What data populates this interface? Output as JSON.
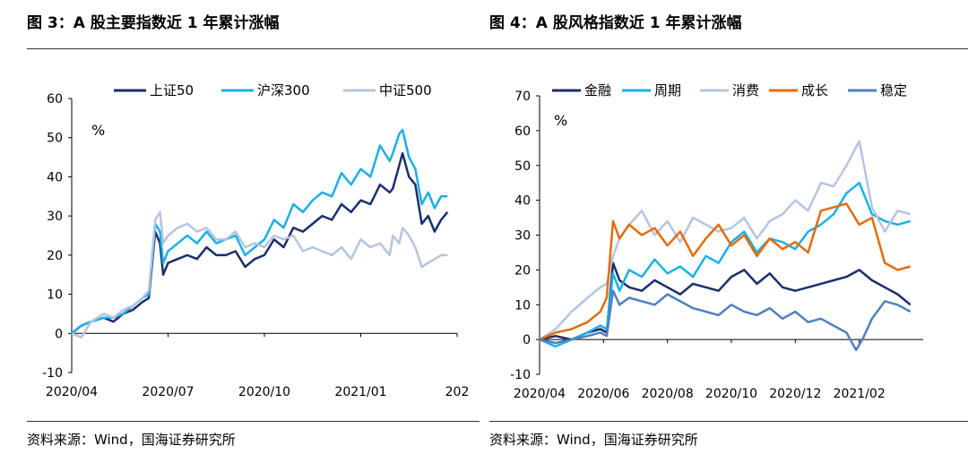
{
  "figure3": {
    "title": "图 3：A 股主要指数近 1 年累计涨幅",
    "source": "资料来源：Wind，国海证券研究所",
    "chart_data": {
      "type": "line",
      "unit_label": "%",
      "ylim": [
        -10,
        60
      ],
      "yticks": [
        -10,
        0,
        10,
        20,
        30,
        40,
        50,
        60
      ],
      "x_domain": [
        "2020/04",
        "2021/03"
      ],
      "xtick_labels": [
        "2020/04",
        "2020/07",
        "2020/10",
        "2021/01",
        "202"
      ],
      "xtick_positions": [
        0,
        3,
        6,
        9,
        12
      ],
      "legend_position": "top",
      "grid": false,
      "series": [
        {
          "name": "上证50",
          "color": "#1a2e6c",
          "x": [
            0,
            0.3,
            0.6,
            1.0,
            1.3,
            1.6,
            1.9,
            2.2,
            2.4,
            2.6,
            2.75,
            2.85,
            3.0,
            3.3,
            3.6,
            3.9,
            4.2,
            4.5,
            4.8,
            5.1,
            5.4,
            5.7,
            6.0,
            6.3,
            6.6,
            6.9,
            7.2,
            7.5,
            7.8,
            8.1,
            8.4,
            8.7,
            9.0,
            9.3,
            9.6,
            9.9,
            10.0,
            10.2,
            10.3,
            10.5,
            10.7,
            10.9,
            11.1,
            11.3,
            11.5,
            11.7
          ],
          "y": [
            0,
            2,
            3,
            4,
            3,
            5,
            6,
            8,
            9,
            26,
            23,
            15,
            18,
            19,
            20,
            19,
            22,
            20,
            20,
            21,
            17,
            19,
            20,
            24,
            22,
            27,
            26,
            28,
            30,
            29,
            33,
            31,
            34,
            33,
            38,
            36,
            37,
            43,
            46,
            40,
            38,
            28,
            30,
            26,
            29,
            31
          ]
        },
        {
          "name": "沪深300",
          "color": "#1ab0e6",
          "x": [
            0,
            0.3,
            0.6,
            1.0,
            1.3,
            1.6,
            1.9,
            2.2,
            2.4,
            2.6,
            2.75,
            2.85,
            3.0,
            3.3,
            3.6,
            3.9,
            4.2,
            4.5,
            4.8,
            5.1,
            5.4,
            5.7,
            6.0,
            6.3,
            6.6,
            6.9,
            7.2,
            7.5,
            7.8,
            8.1,
            8.4,
            8.7,
            9.0,
            9.3,
            9.6,
            9.9,
            10.0,
            10.2,
            10.3,
            10.5,
            10.7,
            10.9,
            11.1,
            11.3,
            11.5,
            11.7
          ],
          "y": [
            0,
            2,
            3,
            4,
            4,
            5,
            7,
            9,
            10,
            28,
            26,
            18,
            21,
            23,
            25,
            23,
            26,
            23,
            24,
            25,
            20,
            22,
            24,
            29,
            27,
            33,
            31,
            34,
            36,
            35,
            41,
            38,
            42,
            40,
            48,
            44,
            46,
            51,
            52,
            45,
            42,
            33,
            36,
            32,
            35,
            35
          ]
        },
        {
          "name": "中证500",
          "color": "#b6c4e0",
          "x": [
            0,
            0.3,
            0.6,
            1.0,
            1.3,
            1.6,
            1.9,
            2.2,
            2.4,
            2.6,
            2.75,
            2.85,
            3.0,
            3.3,
            3.6,
            3.9,
            4.2,
            4.5,
            4.8,
            5.1,
            5.4,
            5.7,
            6.0,
            6.3,
            6.6,
            6.9,
            7.2,
            7.5,
            7.8,
            8.1,
            8.4,
            8.7,
            9.0,
            9.3,
            9.6,
            9.9,
            10.0,
            10.2,
            10.3,
            10.5,
            10.7,
            10.9,
            11.1,
            11.3,
            11.5,
            11.7
          ],
          "y": [
            0,
            -1,
            3,
            5,
            4,
            6,
            7,
            9,
            11,
            29,
            31,
            23,
            25,
            27,
            28,
            26,
            27,
            24,
            24,
            26,
            22,
            23,
            22,
            25,
            24,
            25,
            21,
            22,
            21,
            20,
            22,
            19,
            24,
            22,
            23,
            20,
            25,
            23,
            27,
            25,
            22,
            17,
            18,
            19,
            20,
            20
          ]
        }
      ]
    }
  },
  "figure4": {
    "title": "图 4：A 股风格指数近 1 年累计涨幅",
    "source": "资料来源：Wind，国海证券研究所",
    "chart_data": {
      "type": "line",
      "unit_label": "%",
      "ylim": [
        -10,
        70
      ],
      "yticks": [
        -10,
        0,
        10,
        20,
        30,
        40,
        50,
        60,
        70
      ],
      "x_domain": [
        "2020/04",
        "2021/03"
      ],
      "xtick_labels": [
        "2020/04",
        "2020/06",
        "2020/08",
        "2020/10",
        "2020/12",
        "2021/02"
      ],
      "xtick_positions": [
        0,
        2,
        4,
        6,
        8,
        10
      ],
      "legend_position": "top",
      "grid": false,
      "series": [
        {
          "name": "金融",
          "color": "#1a2e6c",
          "x": [
            0,
            0.5,
            1.0,
            1.5,
            1.9,
            2.1,
            2.3,
            2.5,
            2.8,
            3.2,
            3.6,
            4.0,
            4.4,
            4.8,
            5.2,
            5.6,
            6.0,
            6.4,
            6.8,
            7.2,
            7.6,
            8.0,
            8.4,
            8.8,
            9.2,
            9.6,
            10.0,
            10.4,
            10.8,
            11.2,
            11.6
          ],
          "y": [
            0,
            1,
            0,
            2,
            3,
            2,
            22,
            17,
            15,
            14,
            17,
            15,
            13,
            16,
            15,
            14,
            18,
            20,
            16,
            19,
            15,
            14,
            15,
            16,
            17,
            18,
            20,
            17,
            15,
            13,
            10
          ]
        },
        {
          "name": "周期",
          "color": "#1ab0e6",
          "x": [
            0,
            0.5,
            1.0,
            1.5,
            1.9,
            2.1,
            2.3,
            2.5,
            2.8,
            3.2,
            3.6,
            4.0,
            4.4,
            4.8,
            5.2,
            5.6,
            6.0,
            6.4,
            6.8,
            7.2,
            7.6,
            8.0,
            8.4,
            8.8,
            9.2,
            9.6,
            10.0,
            10.4,
            10.8,
            11.2,
            11.6
          ],
          "y": [
            0,
            -2,
            0,
            2,
            4,
            3,
            19,
            14,
            20,
            18,
            23,
            19,
            21,
            18,
            24,
            22,
            28,
            31,
            25,
            29,
            28,
            26,
            31,
            33,
            36,
            42,
            45,
            36,
            34,
            33,
            34
          ]
        },
        {
          "name": "消费",
          "color": "#b6c4e0",
          "x": [
            0,
            0.5,
            1.0,
            1.5,
            1.9,
            2.1,
            2.3,
            2.5,
            2.8,
            3.2,
            3.6,
            4.0,
            4.4,
            4.8,
            5.2,
            5.6,
            6.0,
            6.4,
            6.8,
            7.2,
            7.6,
            8.0,
            8.4,
            8.8,
            9.2,
            9.6,
            10.0,
            10.4,
            10.8,
            11.2,
            11.6
          ],
          "y": [
            0,
            3,
            8,
            12,
            15,
            16,
            24,
            29,
            33,
            37,
            30,
            34,
            28,
            35,
            33,
            31,
            32,
            35,
            29,
            34,
            36,
            40,
            37,
            45,
            44,
            50,
            57,
            38,
            31,
            37,
            36
          ]
        },
        {
          "name": "成长",
          "color": "#e46c0a",
          "x": [
            0,
            0.5,
            1.0,
            1.5,
            1.9,
            2.1,
            2.3,
            2.5,
            2.8,
            3.2,
            3.6,
            4.0,
            4.4,
            4.8,
            5.2,
            5.6,
            6.0,
            6.4,
            6.8,
            7.2,
            7.6,
            8.0,
            8.4,
            8.8,
            9.2,
            9.6,
            10.0,
            10.4,
            10.8,
            11.2,
            11.6
          ],
          "y": [
            0,
            2,
            3,
            5,
            8,
            12,
            34,
            29,
            33,
            30,
            32,
            27,
            31,
            24,
            29,
            33,
            27,
            30,
            24,
            29,
            26,
            28,
            25,
            37,
            38,
            39,
            33,
            35,
            22,
            20,
            21
          ]
        },
        {
          "name": "稳定",
          "color": "#4f81bd",
          "x": [
            0,
            0.5,
            1.0,
            1.5,
            1.9,
            2.1,
            2.3,
            2.5,
            2.8,
            3.2,
            3.6,
            4.0,
            4.4,
            4.8,
            5.2,
            5.6,
            6.0,
            6.4,
            6.8,
            7.2,
            7.6,
            8.0,
            8.4,
            8.8,
            9.2,
            9.6,
            9.9,
            10.1,
            10.4,
            10.8,
            11.2,
            11.6
          ],
          "y": [
            0,
            -1,
            0,
            1,
            2,
            1,
            14,
            10,
            12,
            11,
            10,
            13,
            11,
            9,
            8,
            7,
            10,
            8,
            7,
            9,
            6,
            8,
            5,
            6,
            4,
            2,
            -3,
            0,
            6,
            11,
            10,
            8
          ]
        }
      ]
    }
  }
}
